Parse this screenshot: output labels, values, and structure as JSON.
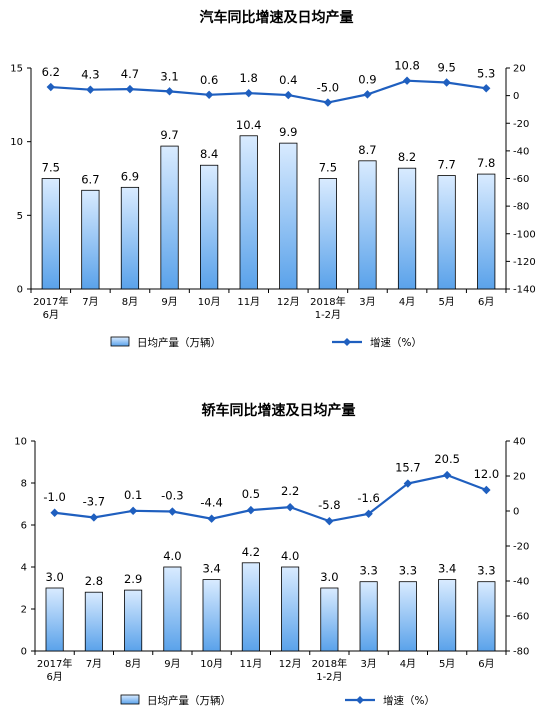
{
  "chart_data": [
    {
      "type": "bar",
      "title": "汽车同比增速及日均产量",
      "categories": [
        "2017年\n6月",
        "7月",
        "8月",
        "9月",
        "10月",
        "11月",
        "12月",
        "2018年\n1-2月",
        "3月",
        "4月",
        "5月",
        "6月"
      ],
      "series": [
        {
          "name": "日均产量（万辆）",
          "type": "bar",
          "axis": "left",
          "values": [
            7.5,
            6.7,
            6.9,
            9.7,
            8.4,
            10.4,
            9.9,
            7.5,
            8.7,
            8.2,
            7.7,
            7.8
          ],
          "labels": [
            "7.5",
            "6.7",
            "6.9",
            "9.7",
            "8.4",
            "10.4",
            "9.9",
            "7.5",
            "8.7",
            "8.2",
            "7.7",
            "7.8"
          ]
        },
        {
          "name": "增速（%）",
          "type": "line",
          "axis": "right",
          "values": [
            6.2,
            4.3,
            4.7,
            3.1,
            0.6,
            1.8,
            0.4,
            -5.0,
            0.9,
            10.8,
            9.5,
            5.3
          ],
          "labels": [
            "6.2",
            "4.3",
            "4.7",
            "3.1",
            "0.6",
            "1.8",
            "0.4",
            "-5.0",
            "0.9",
            "10.8",
            "9.5",
            "5.3"
          ]
        }
      ],
      "y_left": {
        "lim": [
          0,
          15
        ],
        "ticks": [
          0,
          5,
          10,
          15
        ]
      },
      "y_right": {
        "lim": [
          -140,
          20
        ],
        "ticks": [
          20,
          0,
          -20,
          -40,
          -60,
          -80,
          -100,
          -120,
          -140
        ]
      },
      "legend": [
        "日均产量（万辆）",
        "增速（%）"
      ],
      "legend_position": "bottom",
      "grid": false,
      "colors": {
        "bar_top": "#d9ebff",
        "bar_bottom": "#5aa2ea",
        "line": "#1f5fbf"
      }
    },
    {
      "type": "bar",
      "title": "轿车同比增速及日均产量",
      "categories": [
        "2017年\n6月",
        "7月",
        "8月",
        "9月",
        "10月",
        "11月",
        "12月",
        "2018年\n1-2月",
        "3月",
        "4月",
        "5月",
        "6月"
      ],
      "series": [
        {
          "name": "日均产量（万辆）",
          "type": "bar",
          "axis": "left",
          "values": [
            3.0,
            2.8,
            2.9,
            4.0,
            3.4,
            4.2,
            4.0,
            3.0,
            3.3,
            3.3,
            3.4,
            3.3
          ],
          "labels": [
            "3.0",
            "2.8",
            "2.9",
            "4.0",
            "3.4",
            "4.2",
            "4.0",
            "3.0",
            "3.3",
            "3.3",
            "3.4",
            "3.3"
          ]
        },
        {
          "name": "增速（%）",
          "type": "line",
          "axis": "right",
          "values": [
            -1.0,
            -3.7,
            0.1,
            -0.3,
            -4.4,
            0.5,
            2.2,
            -5.8,
            -1.6,
            15.7,
            20.5,
            12.0
          ],
          "labels": [
            "-1.0",
            "-3.7",
            "0.1",
            "-0.3",
            "-4.4",
            "0.5",
            "2.2",
            "-5.8",
            "-1.6",
            "15.7",
            "20.5",
            "12.0"
          ]
        }
      ],
      "y_left": {
        "lim": [
          0,
          10
        ],
        "ticks": [
          0,
          2,
          4,
          6,
          8,
          10
        ]
      },
      "y_right": {
        "lim": [
          -80,
          40
        ],
        "ticks": [
          40,
          20,
          0,
          -20,
          -40,
          -60,
          -80
        ]
      },
      "legend": [
        "日均产量（万辆）",
        "增速（%）"
      ],
      "legend_position": "bottom",
      "grid": false,
      "colors": {
        "bar_top": "#d9ebff",
        "bar_bottom": "#5aa2ea",
        "line": "#1f5fbf"
      }
    }
  ]
}
